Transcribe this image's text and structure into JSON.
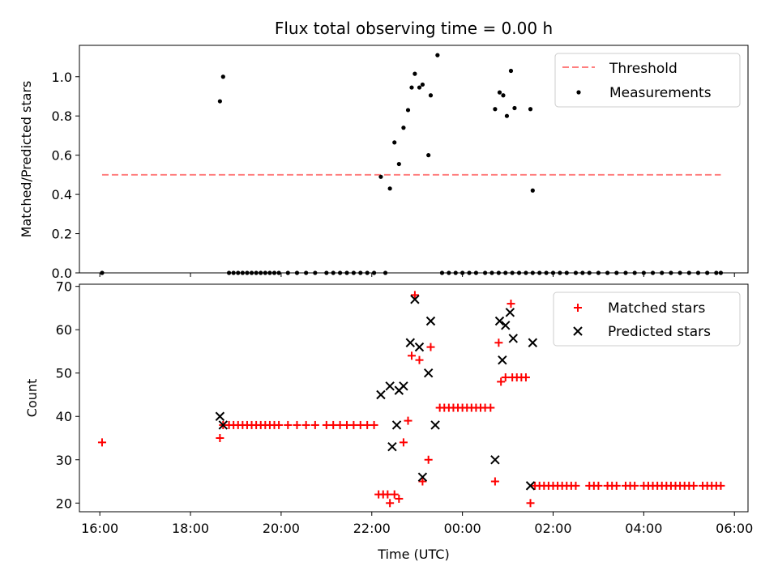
{
  "colors": {
    "threshold": "#ff7f7f",
    "measurements": "#000000",
    "matched": "#ff0000",
    "predicted": "#000000"
  },
  "chart_data": [
    {
      "type": "scatter",
      "title": "Flux total observing time = 0.00 h",
      "xlabel": "",
      "ylabel": "Matched/Predicted stars",
      "ylim": [
        0,
        1.16
      ],
      "yticks": [
        "0.0",
        "0.2",
        "0.4",
        "0.6",
        "0.8",
        "1.0"
      ],
      "legend_position": "top-right",
      "series": [
        {
          "name": "Threshold",
          "style": "dashed-line",
          "x": [
            16.05,
            29.7
          ],
          "y": [
            0.5,
            0.5
          ]
        },
        {
          "name": "Measurements",
          "style": "dot",
          "points": [
            [
              16.05,
              0
            ],
            [
              18.65,
              0.875
            ],
            [
              18.72,
              1.0
            ],
            [
              18.85,
              0
            ],
            [
              18.95,
              0
            ],
            [
              19.05,
              0
            ],
            [
              19.15,
              0
            ],
            [
              19.25,
              0
            ],
            [
              19.35,
              0
            ],
            [
              19.45,
              0
            ],
            [
              19.55,
              0
            ],
            [
              19.65,
              0
            ],
            [
              19.75,
              0
            ],
            [
              19.85,
              0
            ],
            [
              19.95,
              0
            ],
            [
              20.15,
              0
            ],
            [
              20.35,
              0
            ],
            [
              20.55,
              0
            ],
            [
              20.75,
              0
            ],
            [
              21.0,
              0
            ],
            [
              21.15,
              0
            ],
            [
              21.3,
              0
            ],
            [
              21.45,
              0
            ],
            [
              21.6,
              0
            ],
            [
              21.75,
              0
            ],
            [
              21.9,
              0
            ],
            [
              22.05,
              0
            ],
            [
              22.3,
              0
            ],
            [
              22.2,
              0.49
            ],
            [
              22.4,
              0.43
            ],
            [
              22.5,
              0.665
            ],
            [
              22.6,
              0.555
            ],
            [
              22.7,
              0.74
            ],
            [
              22.8,
              0.83
            ],
            [
              22.88,
              0.945
            ],
            [
              22.95,
              1.015
            ],
            [
              23.05,
              0.945
            ],
            [
              23.12,
              0.96
            ],
            [
              23.25,
              0.6
            ],
            [
              23.3,
              0.905
            ],
            [
              23.45,
              1.11
            ],
            [
              23.55,
              0
            ],
            [
              23.7,
              0
            ],
            [
              23.85,
              0
            ],
            [
              24.0,
              0
            ],
            [
              24.15,
              0
            ],
            [
              24.3,
              0
            ],
            [
              24.5,
              0
            ],
            [
              24.65,
              0
            ],
            [
              24.8,
              0
            ],
            [
              24.95,
              0
            ],
            [
              25.1,
              0
            ],
            [
              25.25,
              0
            ],
            [
              25.4,
              0
            ],
            [
              25.55,
              0
            ],
            [
              25.7,
              0
            ],
            [
              25.85,
              0
            ],
            [
              26.0,
              0
            ],
            [
              26.15,
              0
            ],
            [
              26.3,
              0
            ],
            [
              26.5,
              0
            ],
            [
              26.65,
              0
            ],
            [
              26.8,
              0
            ],
            [
              27.0,
              0
            ],
            [
              27.2,
              0
            ],
            [
              27.4,
              0
            ],
            [
              27.6,
              0
            ],
            [
              27.8,
              0
            ],
            [
              28.0,
              0
            ],
            [
              28.2,
              0
            ],
            [
              28.4,
              0
            ],
            [
              28.6,
              0
            ],
            [
              28.8,
              0
            ],
            [
              29.0,
              0
            ],
            [
              29.2,
              0
            ],
            [
              29.4,
              0
            ],
            [
              29.6,
              0
            ],
            [
              29.7,
              0
            ],
            [
              24.72,
              0.835
            ],
            [
              24.82,
              0.92
            ],
            [
              24.9,
              0.905
            ],
            [
              24.98,
              0.8
            ],
            [
              25.07,
              1.03
            ],
            [
              25.15,
              0.84
            ],
            [
              25.5,
              0.835
            ],
            [
              25.55,
              0.42
            ]
          ]
        }
      ]
    },
    {
      "type": "scatter",
      "title": "",
      "xlabel": "Time (UTC)",
      "ylabel": "Count",
      "ylim": [
        18,
        70.5
      ],
      "yticks": [
        "20",
        "30",
        "40",
        "50",
        "60",
        "70"
      ],
      "xlim": [
        15.55,
        30.3
      ],
      "xticks": [
        {
          "x": 16,
          "label": "16:00"
        },
        {
          "x": 18,
          "label": "18:00"
        },
        {
          "x": 20,
          "label": "20:00"
        },
        {
          "x": 22,
          "label": "22:00"
        },
        {
          "x": 24,
          "label": "00:00"
        },
        {
          "x": 26,
          "label": "02:00"
        },
        {
          "x": 28,
          "label": "04:00"
        },
        {
          "x": 30,
          "label": "06:00"
        }
      ],
      "legend_position": "top-right",
      "series": [
        {
          "name": "Matched stars",
          "style": "plus",
          "points": [
            [
              16.05,
              34
            ],
            [
              18.65,
              35
            ],
            [
              18.72,
              38
            ],
            [
              18.85,
              38
            ],
            [
              18.95,
              38
            ],
            [
              19.05,
              38
            ],
            [
              19.15,
              38
            ],
            [
              19.25,
              38
            ],
            [
              19.35,
              38
            ],
            [
              19.45,
              38
            ],
            [
              19.55,
              38
            ],
            [
              19.65,
              38
            ],
            [
              19.75,
              38
            ],
            [
              19.85,
              38
            ],
            [
              19.95,
              38
            ],
            [
              20.15,
              38
            ],
            [
              20.35,
              38
            ],
            [
              20.55,
              38
            ],
            [
              20.75,
              38
            ],
            [
              21.0,
              38
            ],
            [
              21.15,
              38
            ],
            [
              21.3,
              38
            ],
            [
              21.45,
              38
            ],
            [
              21.6,
              38
            ],
            [
              21.75,
              38
            ],
            [
              21.9,
              38
            ],
            [
              22.05,
              38
            ],
            [
              22.15,
              22
            ],
            [
              22.25,
              22
            ],
            [
              22.35,
              22
            ],
            [
              22.4,
              20
            ],
            [
              22.5,
              22
            ],
            [
              22.6,
              21
            ],
            [
              22.7,
              34
            ],
            [
              22.8,
              39
            ],
            [
              22.88,
              54
            ],
            [
              22.95,
              68
            ],
            [
              23.05,
              53
            ],
            [
              23.12,
              25
            ],
            [
              23.25,
              30
            ],
            [
              23.3,
              56
            ],
            [
              23.5,
              42
            ],
            [
              23.6,
              42
            ],
            [
              23.7,
              42
            ],
            [
              23.8,
              42
            ],
            [
              23.9,
              42
            ],
            [
              24.0,
              42
            ],
            [
              24.1,
              42
            ],
            [
              24.2,
              42
            ],
            [
              24.3,
              42
            ],
            [
              24.4,
              42
            ],
            [
              24.5,
              42
            ],
            [
              24.62,
              42
            ],
            [
              24.72,
              25
            ],
            [
              24.8,
              57
            ],
            [
              24.85,
              48
            ],
            [
              24.95,
              49
            ],
            [
              25.07,
              66
            ],
            [
              25.1,
              49
            ],
            [
              25.2,
              49
            ],
            [
              25.3,
              49
            ],
            [
              25.4,
              49
            ],
            [
              25.5,
              20
            ],
            [
              25.6,
              24
            ],
            [
              25.7,
              24
            ],
            [
              25.8,
              24
            ],
            [
              25.9,
              24
            ],
            [
              26.0,
              24
            ],
            [
              26.1,
              24
            ],
            [
              26.2,
              24
            ],
            [
              26.3,
              24
            ],
            [
              26.4,
              24
            ],
            [
              26.5,
              24
            ],
            [
              26.8,
              24
            ],
            [
              26.9,
              24
            ],
            [
              27.0,
              24
            ],
            [
              27.2,
              24
            ],
            [
              27.3,
              24
            ],
            [
              27.4,
              24
            ],
            [
              27.6,
              24
            ],
            [
              27.7,
              24
            ],
            [
              27.8,
              24
            ],
            [
              28.0,
              24
            ],
            [
              28.1,
              24
            ],
            [
              28.2,
              24
            ],
            [
              28.3,
              24
            ],
            [
              28.4,
              24
            ],
            [
              28.5,
              24
            ],
            [
              28.6,
              24
            ],
            [
              28.7,
              24
            ],
            [
              28.8,
              24
            ],
            [
              28.9,
              24
            ],
            [
              29.0,
              24
            ],
            [
              29.1,
              24
            ],
            [
              29.3,
              24
            ],
            [
              29.4,
              24
            ],
            [
              29.5,
              24
            ],
            [
              29.6,
              24
            ],
            [
              29.7,
              24
            ]
          ]
        },
        {
          "name": "Predicted stars",
          "style": "x",
          "points": [
            [
              18.65,
              40
            ],
            [
              18.72,
              38
            ],
            [
              22.2,
              45
            ],
            [
              22.4,
              47
            ],
            [
              22.45,
              33
            ],
            [
              22.55,
              38
            ],
            [
              22.6,
              46
            ],
            [
              22.7,
              47
            ],
            [
              22.85,
              57
            ],
            [
              22.95,
              67
            ],
            [
              23.05,
              56
            ],
            [
              23.12,
              26
            ],
            [
              23.25,
              50
            ],
            [
              23.3,
              62
            ],
            [
              23.4,
              38
            ],
            [
              24.72,
              30
            ],
            [
              24.82,
              62
            ],
            [
              24.88,
              53
            ],
            [
              24.95,
              61
            ],
            [
              25.05,
              64
            ],
            [
              25.12,
              58
            ],
            [
              25.5,
              24
            ],
            [
              25.55,
              57
            ]
          ]
        }
      ]
    }
  ]
}
